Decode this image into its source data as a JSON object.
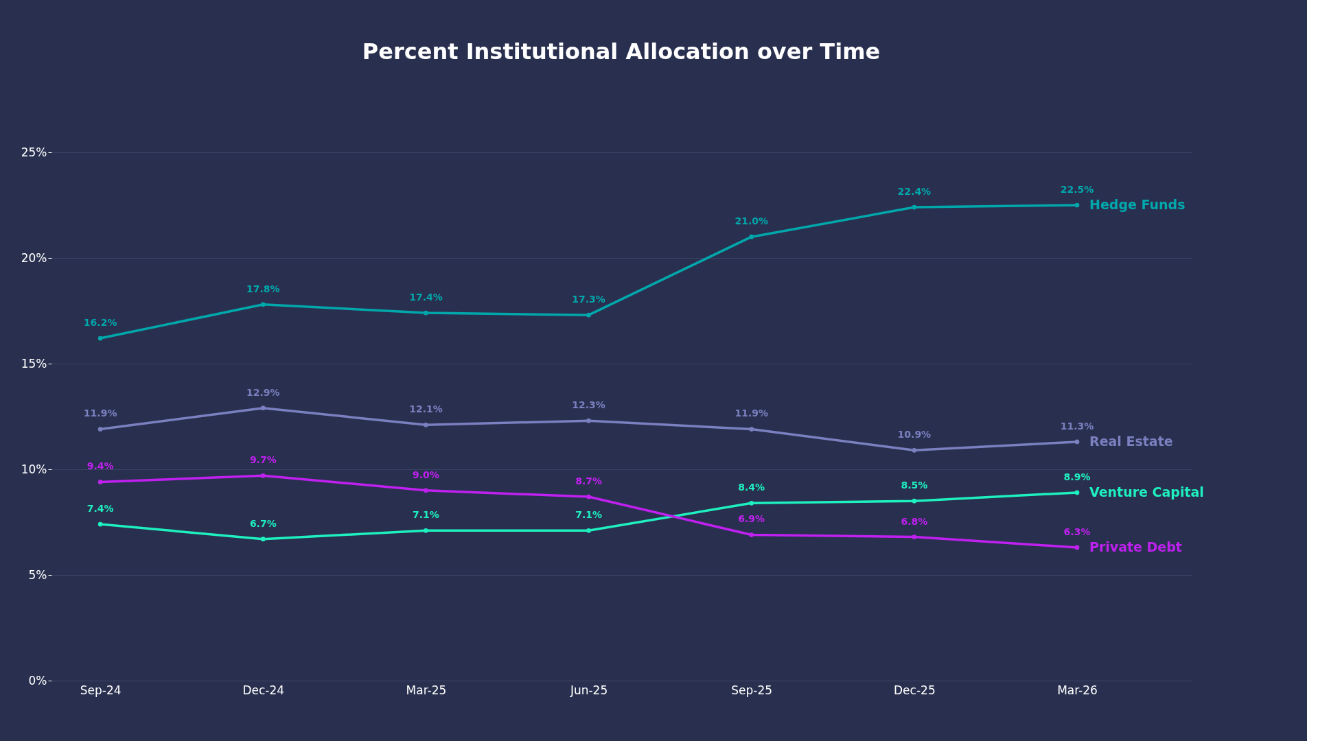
{
  "chart_data": {
    "type": "line",
    "title": "Percent Institutional Allocation over Time",
    "categories": [
      "Sep-24",
      "Dec-24",
      "Mar-25",
      "Jun-25",
      "Sep-25",
      "Dec-25",
      "Mar-26"
    ],
    "series": [
      {
        "name": "Hedge Funds",
        "color": "#00a8ac",
        "values": [
          16.2,
          17.8,
          17.4,
          17.3,
          21.0,
          22.4,
          22.5
        ],
        "value_labels": [
          "16.2%",
          "17.8%",
          "17.4%",
          "17.3%",
          "21.0%",
          "22.4%",
          "22.5%"
        ]
      },
      {
        "name": "Real Estate",
        "color": "#7a80c0",
        "values": [
          11.9,
          12.9,
          12.1,
          12.3,
          11.9,
          10.9,
          11.3
        ],
        "value_labels": [
          "11.9%",
          "12.9%",
          "12.1%",
          "12.3%",
          "11.9%",
          "10.9%",
          "11.3%"
        ]
      },
      {
        "name": "Venture Capital",
        "color": "#1ef0c0",
        "values": [
          7.4,
          6.7,
          7.1,
          7.1,
          8.4,
          8.5,
          8.9
        ],
        "value_labels": [
          "7.4%",
          "6.7%",
          "7.1%",
          "7.1%",
          "8.4%",
          "8.5%",
          "8.9%"
        ]
      },
      {
        "name": "Private Debt",
        "color": "#c020f0",
        "values": [
          9.4,
          9.7,
          9.0,
          8.7,
          6.9,
          6.8,
          6.3
        ],
        "value_labels": [
          "9.4%",
          "9.7%",
          "9.0%",
          "8.7%",
          "6.9%",
          "6.8%",
          "6.3%"
        ]
      }
    ],
    "ylim": [
      0,
      25
    ],
    "yticks": [
      {
        "value": 0,
        "label": "0%"
      },
      {
        "value": 5,
        "label": "5%"
      },
      {
        "value": 10,
        "label": "10%"
      },
      {
        "value": 15,
        "label": "15%"
      },
      {
        "value": 20,
        "label": "20%"
      },
      {
        "value": 25,
        "label": "25%"
      }
    ],
    "grid": "y",
    "legend": false,
    "marker": "circle",
    "line_style": "solid"
  }
}
